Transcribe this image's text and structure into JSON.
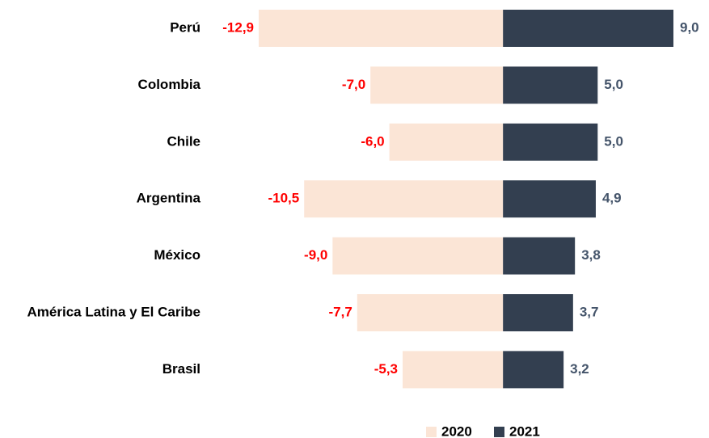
{
  "chart_data": {
    "type": "diverging_bar",
    "categories": [
      "Perú",
      "Colombia",
      "Chile",
      "Argentina",
      "México",
      "América Latina y El Caribe",
      "Brasil"
    ],
    "series": [
      {
        "name": "2020",
        "color": "#fbe5d6",
        "values": [
          -12.9,
          -7.0,
          -6.0,
          -10.5,
          -9.0,
          -7.7,
          -5.3
        ],
        "value_labels": [
          "-12,9",
          "-7,0",
          "-6,0",
          "-10,5",
          "-9,0",
          "-7,7",
          "-5,3"
        ]
      },
      {
        "name": "2021",
        "color": "#333f50",
        "values": [
          9.0,
          5.0,
          5.0,
          4.9,
          3.8,
          3.7,
          3.2
        ],
        "value_labels": [
          "9,0",
          "5,0",
          "5,0",
          "4,9",
          "3,8",
          "3,7",
          "3,2"
        ]
      }
    ],
    "legend": "bottom"
  }
}
